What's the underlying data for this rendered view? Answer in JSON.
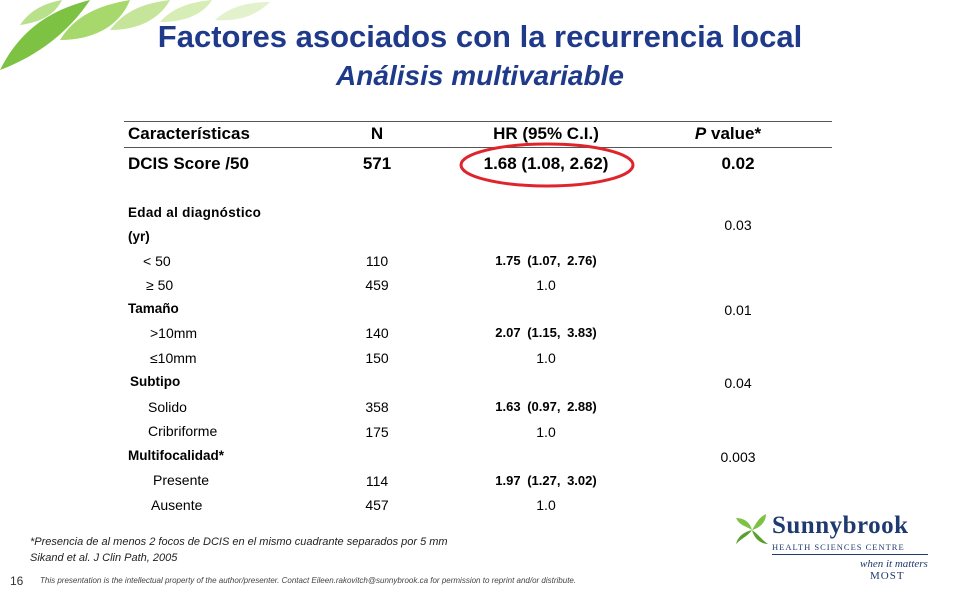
{
  "slide": {
    "title": "Factores asociados con la recurrencia local",
    "subtitle": "Análisis multivariable",
    "page_number": "16"
  },
  "table": {
    "headers": {
      "characteristic": "Características",
      "n": "N",
      "hr": "HR (95% C.I.)",
      "p_italic": "P",
      "p_rest": " value*"
    },
    "dcis_row": {
      "label": "DCIS Score /50",
      "n": "571",
      "hr": "1.68 (1.08, 2.62)",
      "p": "0.02"
    },
    "rows": [
      {
        "label": "Edad al diagnóstico",
        "n": "",
        "hr": "",
        "p": ""
      },
      {
        "label": "(yr)",
        "n": "",
        "hr": "",
        "p": "0.03"
      },
      {
        "label": "< 50",
        "n": "110",
        "hr": "1.75 (1.07, 2.76)",
        "p": ""
      },
      {
        "label": "≥ 50",
        "n": "459",
        "hr": "1.0",
        "p": ""
      },
      {
        "label": "Tamaño",
        "n": "",
        "hr": "",
        "p": "0.01"
      },
      {
        "label": ">10mm",
        "n": "140",
        "hr": "2.07 (1.15, 3.83)",
        "p": ""
      },
      {
        "label": "≤10mm",
        "n": "150",
        "hr": "1.0",
        "p": ""
      },
      {
        "label": "Subtipo",
        "n": "",
        "hr": "",
        "p": "0.04"
      },
      {
        "label": "Solido",
        "n": "358",
        "hr": "1.63 (0.97, 2.88)",
        "p": ""
      },
      {
        "label": "Cribriforme",
        "n": "175",
        "hr": "1.0",
        "p": ""
      },
      {
        "label": "Multifocalidad*",
        "n": "",
        "hr": "",
        "p": "0.003"
      },
      {
        "label": "Presente",
        "n": "114",
        "hr": "1.97 (1.27, 3.02)",
        "p": ""
      },
      {
        "label": "Ausente",
        "n": "457",
        "hr": "1.0",
        "p": ""
      }
    ]
  },
  "footnotes": {
    "note": "*Presencia de al menos 2 focos de DCIS en el mismo cuadrante separados por 5 mm",
    "citation": "Sikand et al. J Clin Path, 2005",
    "legal": "This presentation is the intellectual property of the author/presenter. Contact Eileen.rakovitch@sunnybrook.ca for permission to reprint and/or distribute."
  },
  "logo": {
    "name": "Sunnybrook",
    "subtitle": "HEALTH SCIENCES CENTRE",
    "tagline1": "when it matters",
    "tagline2": "MOST"
  },
  "colors": {
    "title": "#1f3a8a",
    "highlight_ring": "#e0242b",
    "leaf_green": "#7dc242"
  }
}
